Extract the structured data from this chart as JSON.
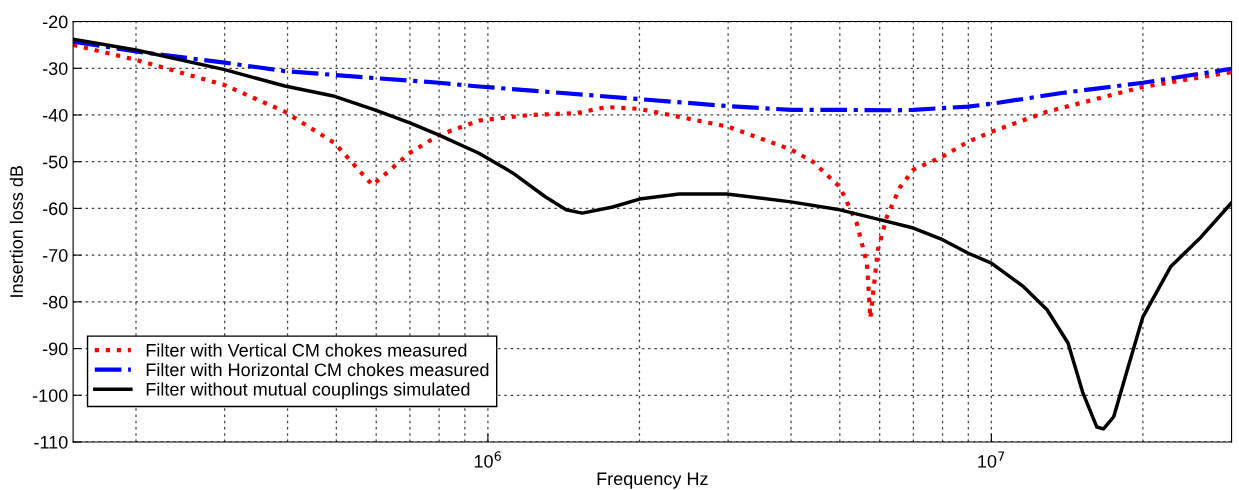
{
  "chart_data": {
    "type": "line",
    "xlabel": "Frequency Hz",
    "ylabel": "Insertion loss dB",
    "log": "x",
    "grid": true,
    "legend": "bottom left",
    "xlim": [
      150000,
      30000000
    ],
    "xticks": [
      {
        "value": 1000000,
        "label": "10$^{6}$"
      },
      {
        "value": 10000000,
        "label": "10$^{7}$"
      }
    ],
    "ylim": [
      -110,
      -20
    ],
    "yticks": [
      -110,
      -100,
      -90,
      -80,
      -70,
      -60,
      -50,
      -40,
      -30,
      -20
    ],
    "series": [
      {
        "name": "Filter with Vertical CM chokes measured",
        "color": "#ff0000",
        "line_style": "dotted",
        "x": [
          150000,
          200000,
          300000,
          395000,
          496000,
          553000,
          590000,
          700000,
          800000,
          960000,
          1210000,
          1500000,
          1720000,
          2000000,
          2400000,
          3000000,
          4000000,
          4420000,
          5000000,
          5400000,
          5660000,
          5750000,
          5950000,
          6200000,
          6590000,
          7000000,
          8000000,
          9000000,
          10000000,
          12900000,
          20000000,
          30000000
        ],
        "values": [
          -25.0,
          -28.2,
          -33.6,
          -39.3,
          -46.0,
          -51.7,
          -55.0,
          -48.1,
          -44.3,
          -41.2,
          -40.0,
          -39.6,
          -38.3,
          -38.7,
          -40.4,
          -42.5,
          -47.4,
          -50.0,
          -55.4,
          -63.1,
          -71.7,
          -83.5,
          -68.9,
          -61.8,
          -55.4,
          -51.7,
          -48.9,
          -45.7,
          -43.6,
          -39.3,
          -34.0,
          -30.8
        ]
      },
      {
        "name": "Filter with Horizontal CM chokes measured",
        "color": "#0000ff",
        "line_style": "dashdot",
        "x": [
          150000,
          200000,
          300000,
          395000,
          596000,
          800000,
          960000,
          1300000,
          2000000,
          3000000,
          4000000,
          5000000,
          6500000,
          7000000,
          9000000,
          10000000,
          14000000,
          20000000,
          30000000
        ],
        "values": [
          -24.3,
          -26.4,
          -28.8,
          -30.6,
          -32.1,
          -33.1,
          -33.9,
          -35.0,
          -36.6,
          -38.1,
          -38.9,
          -38.9,
          -39.0,
          -38.9,
          -38.2,
          -37.6,
          -35.2,
          -33.1,
          -30.1
        ]
      },
      {
        "name": "Filter without mutual couplings simulated",
        "color": "#000000",
        "line_style": "solid",
        "x": [
          150000,
          200000,
          300000,
          395000,
          496000,
          596000,
          700000,
          800000,
          960000,
          1120000,
          1300000,
          1430000,
          1540000,
          1770000,
          2000000,
          2400000,
          2980000,
          4000000,
          5000000,
          6000000,
          7000000,
          8000000,
          9000000,
          10000000,
          11600000,
          12900000,
          14200000,
          15200000,
          16200000,
          16700000,
          17500000,
          18700000,
          20000000,
          22700000,
          26100000,
          30000000
        ],
        "values": [
          -23.8,
          -26.1,
          -30.3,
          -33.8,
          -36.0,
          -38.9,
          -41.7,
          -44.3,
          -48.2,
          -52.4,
          -57.5,
          -60.3,
          -61.0,
          -59.7,
          -58.0,
          -56.9,
          -56.9,
          -58.6,
          -60.3,
          -62.4,
          -64.2,
          -66.7,
          -69.6,
          -71.7,
          -76.8,
          -81.7,
          -88.8,
          -99.5,
          -106.8,
          -107.2,
          -104.6,
          -93.9,
          -83.2,
          -72.5,
          -66.1,
          -58.8
        ]
      }
    ]
  }
}
